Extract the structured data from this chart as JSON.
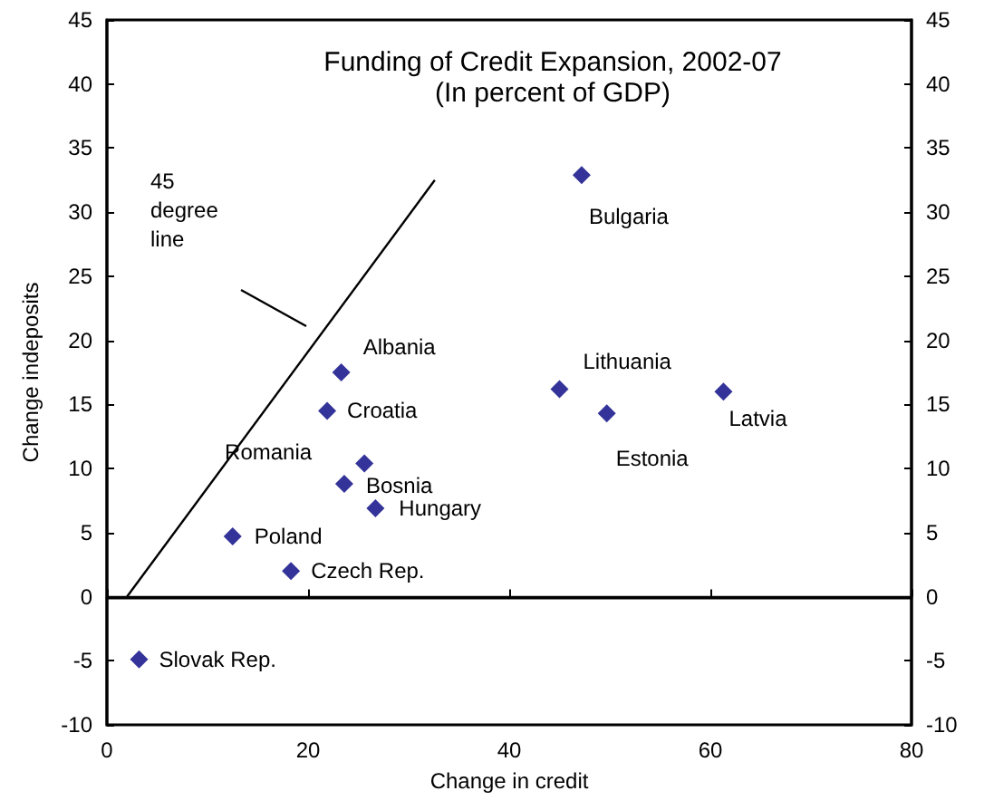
{
  "chart_data": {
    "type": "scatter",
    "title": "Funding of Credit Expansion, 2002-07",
    "subtitle": "(In percent of GDP)",
    "xlabel": "Change in credit",
    "ylabel": "Change indeposits",
    "xlim": [
      0,
      80
    ],
    "xticks": [
      0,
      20,
      40,
      60,
      80
    ],
    "ylim": [
      -10,
      45
    ],
    "yticks": [
      -10,
      -5,
      0,
      5,
      10,
      15,
      20,
      25,
      30,
      35,
      40,
      45
    ],
    "y2lim": [
      -10,
      45
    ],
    "y2ticks": [
      -10,
      -5,
      0,
      5,
      10,
      15,
      20,
      25,
      30,
      35,
      40,
      45
    ],
    "marker": "diamond",
    "series": [
      {
        "color": "#000080",
        "x": [
          47.2,
          45.0,
          49.7,
          61.3,
          23.3,
          21.9,
          25.6,
          23.6,
          26.7,
          12.5,
          18.3,
          3.2
        ],
        "values": [
          32.9,
          16.2,
          14.3,
          16.0,
          17.5,
          14.5,
          10.4,
          8.8,
          6.9,
          4.7,
          2.0,
          -4.9
        ]
      },
      {
        "type": "line",
        "color": "#000000",
        "marker": "none",
        "x": [
          2,
          32.6
        ],
        "values": [
          0,
          32.5
        ]
      }
    ],
    "ref_lines": [
      {
        "axis": "y",
        "value": 0,
        "color": "#000000"
      }
    ],
    "annotations": [
      {
        "text": "Bulgaria",
        "x": 47.2,
        "y": 32.9
      },
      {
        "text": "Lithuania",
        "x": 45.0,
        "y": 16.2
      },
      {
        "text": "Estonia",
        "x": 49.7,
        "y": 14.3
      },
      {
        "text": "Latvia",
        "x": 61.3,
        "y": 16.0
      },
      {
        "text": "Albania",
        "x": 23.3,
        "y": 17.5
      },
      {
        "text": "Croatia",
        "x": 21.9,
        "y": 14.5
      },
      {
        "text": "Romania",
        "x": 25.6,
        "y": 10.4
      },
      {
        "text": "Bosnia",
        "x": 23.6,
        "y": 8.8
      },
      {
        "text": "Hungary",
        "x": 26.7,
        "y": 6.9
      },
      {
        "text": "Poland",
        "x": 12.5,
        "y": 4.7
      },
      {
        "text": "Czech Rep.",
        "x": 18.3,
        "y": 2.0
      },
      {
        "text": "Slovak Rep.",
        "x": 3.2,
        "y": -4.9
      },
      "45 degree line"
    ]
  }
}
